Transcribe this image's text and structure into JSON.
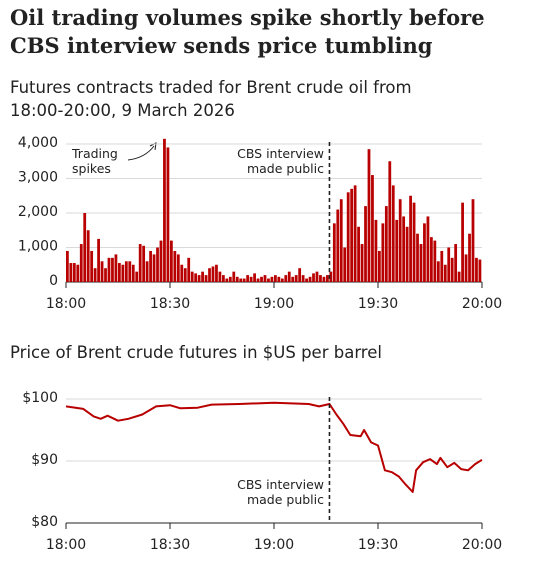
{
  "chart_data": [
    {
      "type": "bar",
      "title": "Oil trading volumes spike shortly before CBS interview sends price tumbling",
      "subtitle": "Futures contracts traded for Brent crude oil from 18:00-20:00, 9 March 2026",
      "color": "#b80000",
      "x": [
        0,
        1,
        2,
        3,
        4,
        5,
        6,
        7,
        8,
        9,
        10,
        11,
        12,
        13,
        14,
        15,
        16,
        17,
        18,
        19,
        20,
        21,
        22,
        23,
        24,
        25,
        26,
        27,
        28,
        29,
        30,
        31,
        32,
        33,
        34,
        35,
        36,
        37,
        38,
        39,
        40,
        41,
        42,
        43,
        44,
        45,
        46,
        47,
        48,
        49,
        50,
        51,
        52,
        53,
        54,
        55,
        56,
        57,
        58,
        59,
        60,
        61,
        62,
        63,
        64,
        65,
        66,
        67,
        68,
        69,
        70,
        71,
        72,
        73,
        74,
        75,
        76,
        77,
        78,
        79,
        80,
        81,
        82,
        83,
        84,
        85,
        86,
        87,
        88,
        89,
        90,
        91,
        92,
        93,
        94,
        95,
        96,
        97,
        98,
        99,
        100,
        101,
        102,
        103,
        104,
        105,
        106,
        107,
        108,
        109,
        110,
        111,
        112,
        113,
        114,
        115,
        116,
        117,
        118,
        119
      ],
      "values": [
        900,
        550,
        550,
        500,
        1100,
        2000,
        1500,
        900,
        400,
        1250,
        600,
        400,
        700,
        700,
        800,
        550,
        500,
        600,
        600,
        500,
        300,
        1100,
        1050,
        600,
        900,
        800,
        1000,
        1200,
        4150,
        3900,
        1200,
        900,
        800,
        500,
        400,
        700,
        300,
        250,
        200,
        300,
        200,
        400,
        450,
        500,
        300,
        200,
        100,
        150,
        300,
        150,
        100,
        100,
        200,
        150,
        250,
        100,
        150,
        200,
        100,
        150,
        200,
        150,
        100,
        200,
        300,
        150,
        200,
        400,
        200,
        100,
        150,
        250,
        300,
        200,
        150,
        200,
        300,
        1700,
        2100,
        2400,
        1000,
        2600,
        2700,
        2800,
        1600,
        1100,
        2200,
        3850,
        3100,
        1800,
        900,
        1700,
        2200,
        3500,
        2800,
        1800,
        2400,
        1900,
        1600,
        2500,
        2300,
        1400,
        1100,
        1700,
        1900,
        1300,
        1200,
        600,
        900,
        500,
        1000,
        700,
        1100,
        300,
        2300,
        800,
        1400,
        2400,
        700,
        650
      ],
      "xlim": [
        0,
        120
      ],
      "xticks": [
        {
          "value": 0,
          "label": "18:00"
        },
        {
          "value": 30,
          "label": "18:30"
        },
        {
          "value": 60,
          "label": "19:00"
        },
        {
          "value": 90,
          "label": "19:30"
        },
        {
          "value": 120,
          "label": "20:00"
        }
      ],
      "ylim": [
        0,
        4000
      ],
      "yticks": [
        0,
        {
          "value": 1000,
          "label": "1,000"
        },
        {
          "value": 2000,
          "label": "2,000"
        },
        {
          "value": 3000,
          "label": "3,000"
        },
        {
          "value": 4000,
          "label": "4,000"
        }
      ],
      "grid": true,
      "marker_x": 76,
      "annotations": [
        "Trading spikes",
        "CBS interview made public"
      ]
    },
    {
      "type": "line",
      "subtitle": "Price of Brent crude futures in $US per barrel",
      "color": "#b80000",
      "x": [
        0,
        5,
        8,
        10,
        12,
        15,
        18,
        22,
        26,
        30,
        33,
        38,
        42,
        50,
        60,
        70,
        73,
        76,
        78,
        80,
        82,
        85,
        86,
        88,
        90,
        92,
        94,
        96,
        98,
        100,
        101,
        103,
        105,
        107,
        108,
        110,
        112,
        114,
        116,
        118,
        120
      ],
      "values": [
        98.8,
        98.4,
        97.2,
        96.8,
        97.3,
        96.5,
        96.8,
        97.5,
        98.8,
        99.0,
        98.5,
        98.6,
        99.1,
        99.2,
        99.4,
        99.2,
        98.8,
        99.2,
        97.5,
        96.0,
        94.2,
        94.0,
        95.0,
        93.0,
        92.5,
        88.5,
        88.2,
        87.5,
        86.2,
        85.0,
        88.5,
        89.8,
        90.3,
        89.5,
        90.5,
        89.0,
        89.7,
        88.7,
        88.5,
        89.5,
        90.2
      ],
      "xlim": [
        0,
        120
      ],
      "xticks": [
        {
          "value": 0,
          "label": "18:00"
        },
        {
          "value": 30,
          "label": "18:30"
        },
        {
          "value": 60,
          "label": "19:00"
        },
        {
          "value": 90,
          "label": "19:30"
        },
        {
          "value": 120,
          "label": "20:00"
        }
      ],
      "ylim": [
        80,
        100
      ],
      "yticks": [
        {
          "value": 80,
          "label": "$80"
        },
        {
          "value": 90,
          "label": "$90"
        },
        {
          "value": 100,
          "label": "$100"
        }
      ],
      "grid": true,
      "marker_x": 76,
      "annotations": [
        "CBS interview made public"
      ]
    }
  ]
}
